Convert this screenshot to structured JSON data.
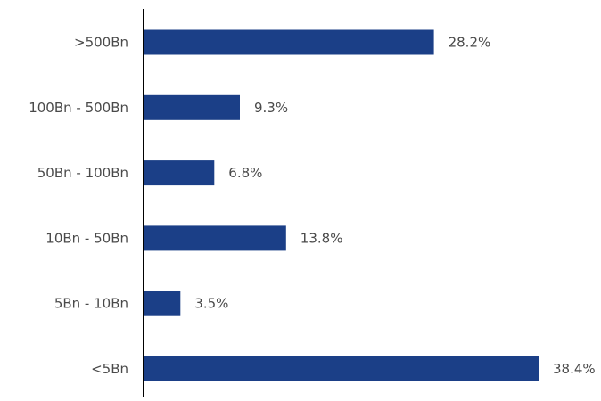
{
  "chart_data": {
    "type": "bar",
    "orientation": "horizontal",
    "categories": [
      ">500Bn",
      "100Bn - 500Bn",
      "50Bn - 100Bn",
      "10Bn - 50Bn",
      "5Bn - 10Bn",
      "<5Bn"
    ],
    "values": [
      28.2,
      9.3,
      6.8,
      13.8,
      3.5,
      38.4
    ],
    "value_labels": [
      "28.2%",
      "9.3%",
      "6.8%",
      "13.8%",
      "3.5%",
      "38.4%"
    ],
    "unit": "%",
    "title": "",
    "xlabel": "",
    "ylabel": "",
    "xlim": [
      0,
      38.4
    ],
    "grid": false,
    "legend": "none",
    "colors": {
      "bar": "#1b3f87",
      "axis": "#000000",
      "text": "#4a4a4a"
    }
  }
}
